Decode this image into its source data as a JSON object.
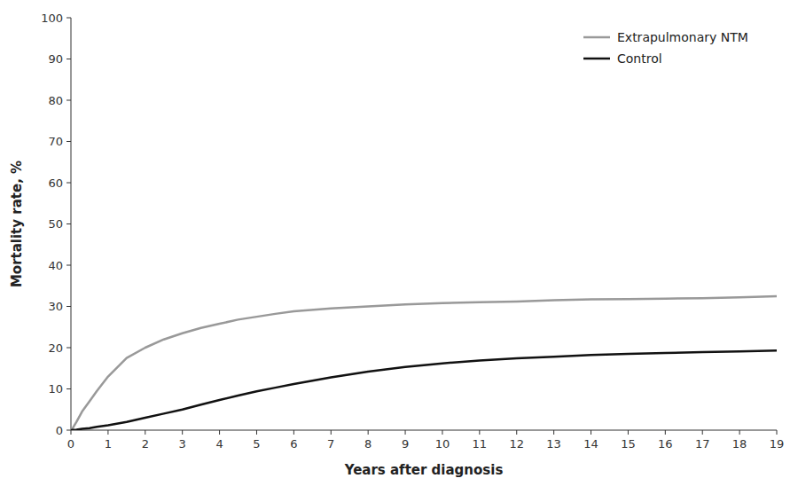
{
  "chart_data": {
    "type": "line",
    "xlabel": "Years after diagnosis",
    "ylabel": "Mortality rate, %",
    "x": [
      0,
      0.05,
      0.15,
      0.3,
      0.5,
      0.7,
      1.0,
      1.5,
      2.0,
      2.5,
      3.0,
      3.5,
      4.0,
      4.5,
      5.0,
      5.5,
      6.0,
      7.0,
      8.0,
      9.0,
      10.0,
      11.0,
      12.0,
      13.0,
      14.0,
      15.0,
      16.0,
      17.0,
      18.0,
      19.0
    ],
    "series": [
      {
        "name": "Extrapulmonary NTM",
        "color": "#999999",
        "values": [
          0,
          0.5,
          2.0,
          4.5,
          7.0,
          9.5,
          13.0,
          17.5,
          20.0,
          22.0,
          23.5,
          24.8,
          25.8,
          26.8,
          27.5,
          28.2,
          28.8,
          29.5,
          30.0,
          30.5,
          30.8,
          31.0,
          31.2,
          31.5,
          31.7,
          31.8,
          31.9,
          32.0,
          32.2,
          32.5
        ]
      },
      {
        "name": "Control",
        "color": "#111111",
        "values": [
          0,
          0.05,
          0.1,
          0.3,
          0.5,
          0.8,
          1.2,
          2.0,
          3.0,
          4.0,
          5.0,
          6.2,
          7.3,
          8.4,
          9.4,
          10.3,
          11.2,
          12.8,
          14.2,
          15.3,
          16.2,
          16.9,
          17.4,
          17.8,
          18.2,
          18.5,
          18.7,
          18.9,
          19.1,
          19.3
        ]
      }
    ],
    "xlim": [
      0,
      19
    ],
    "ylim": [
      0,
      100
    ],
    "xticks": [
      0,
      1,
      2,
      3,
      4,
      5,
      6,
      7,
      8,
      9,
      10,
      11,
      12,
      13,
      14,
      15,
      16,
      17,
      18,
      19
    ],
    "yticks": [
      0,
      10,
      20,
      30,
      40,
      50,
      60,
      70,
      80,
      90,
      100
    ],
    "legend": "upper right",
    "grid": false
  }
}
